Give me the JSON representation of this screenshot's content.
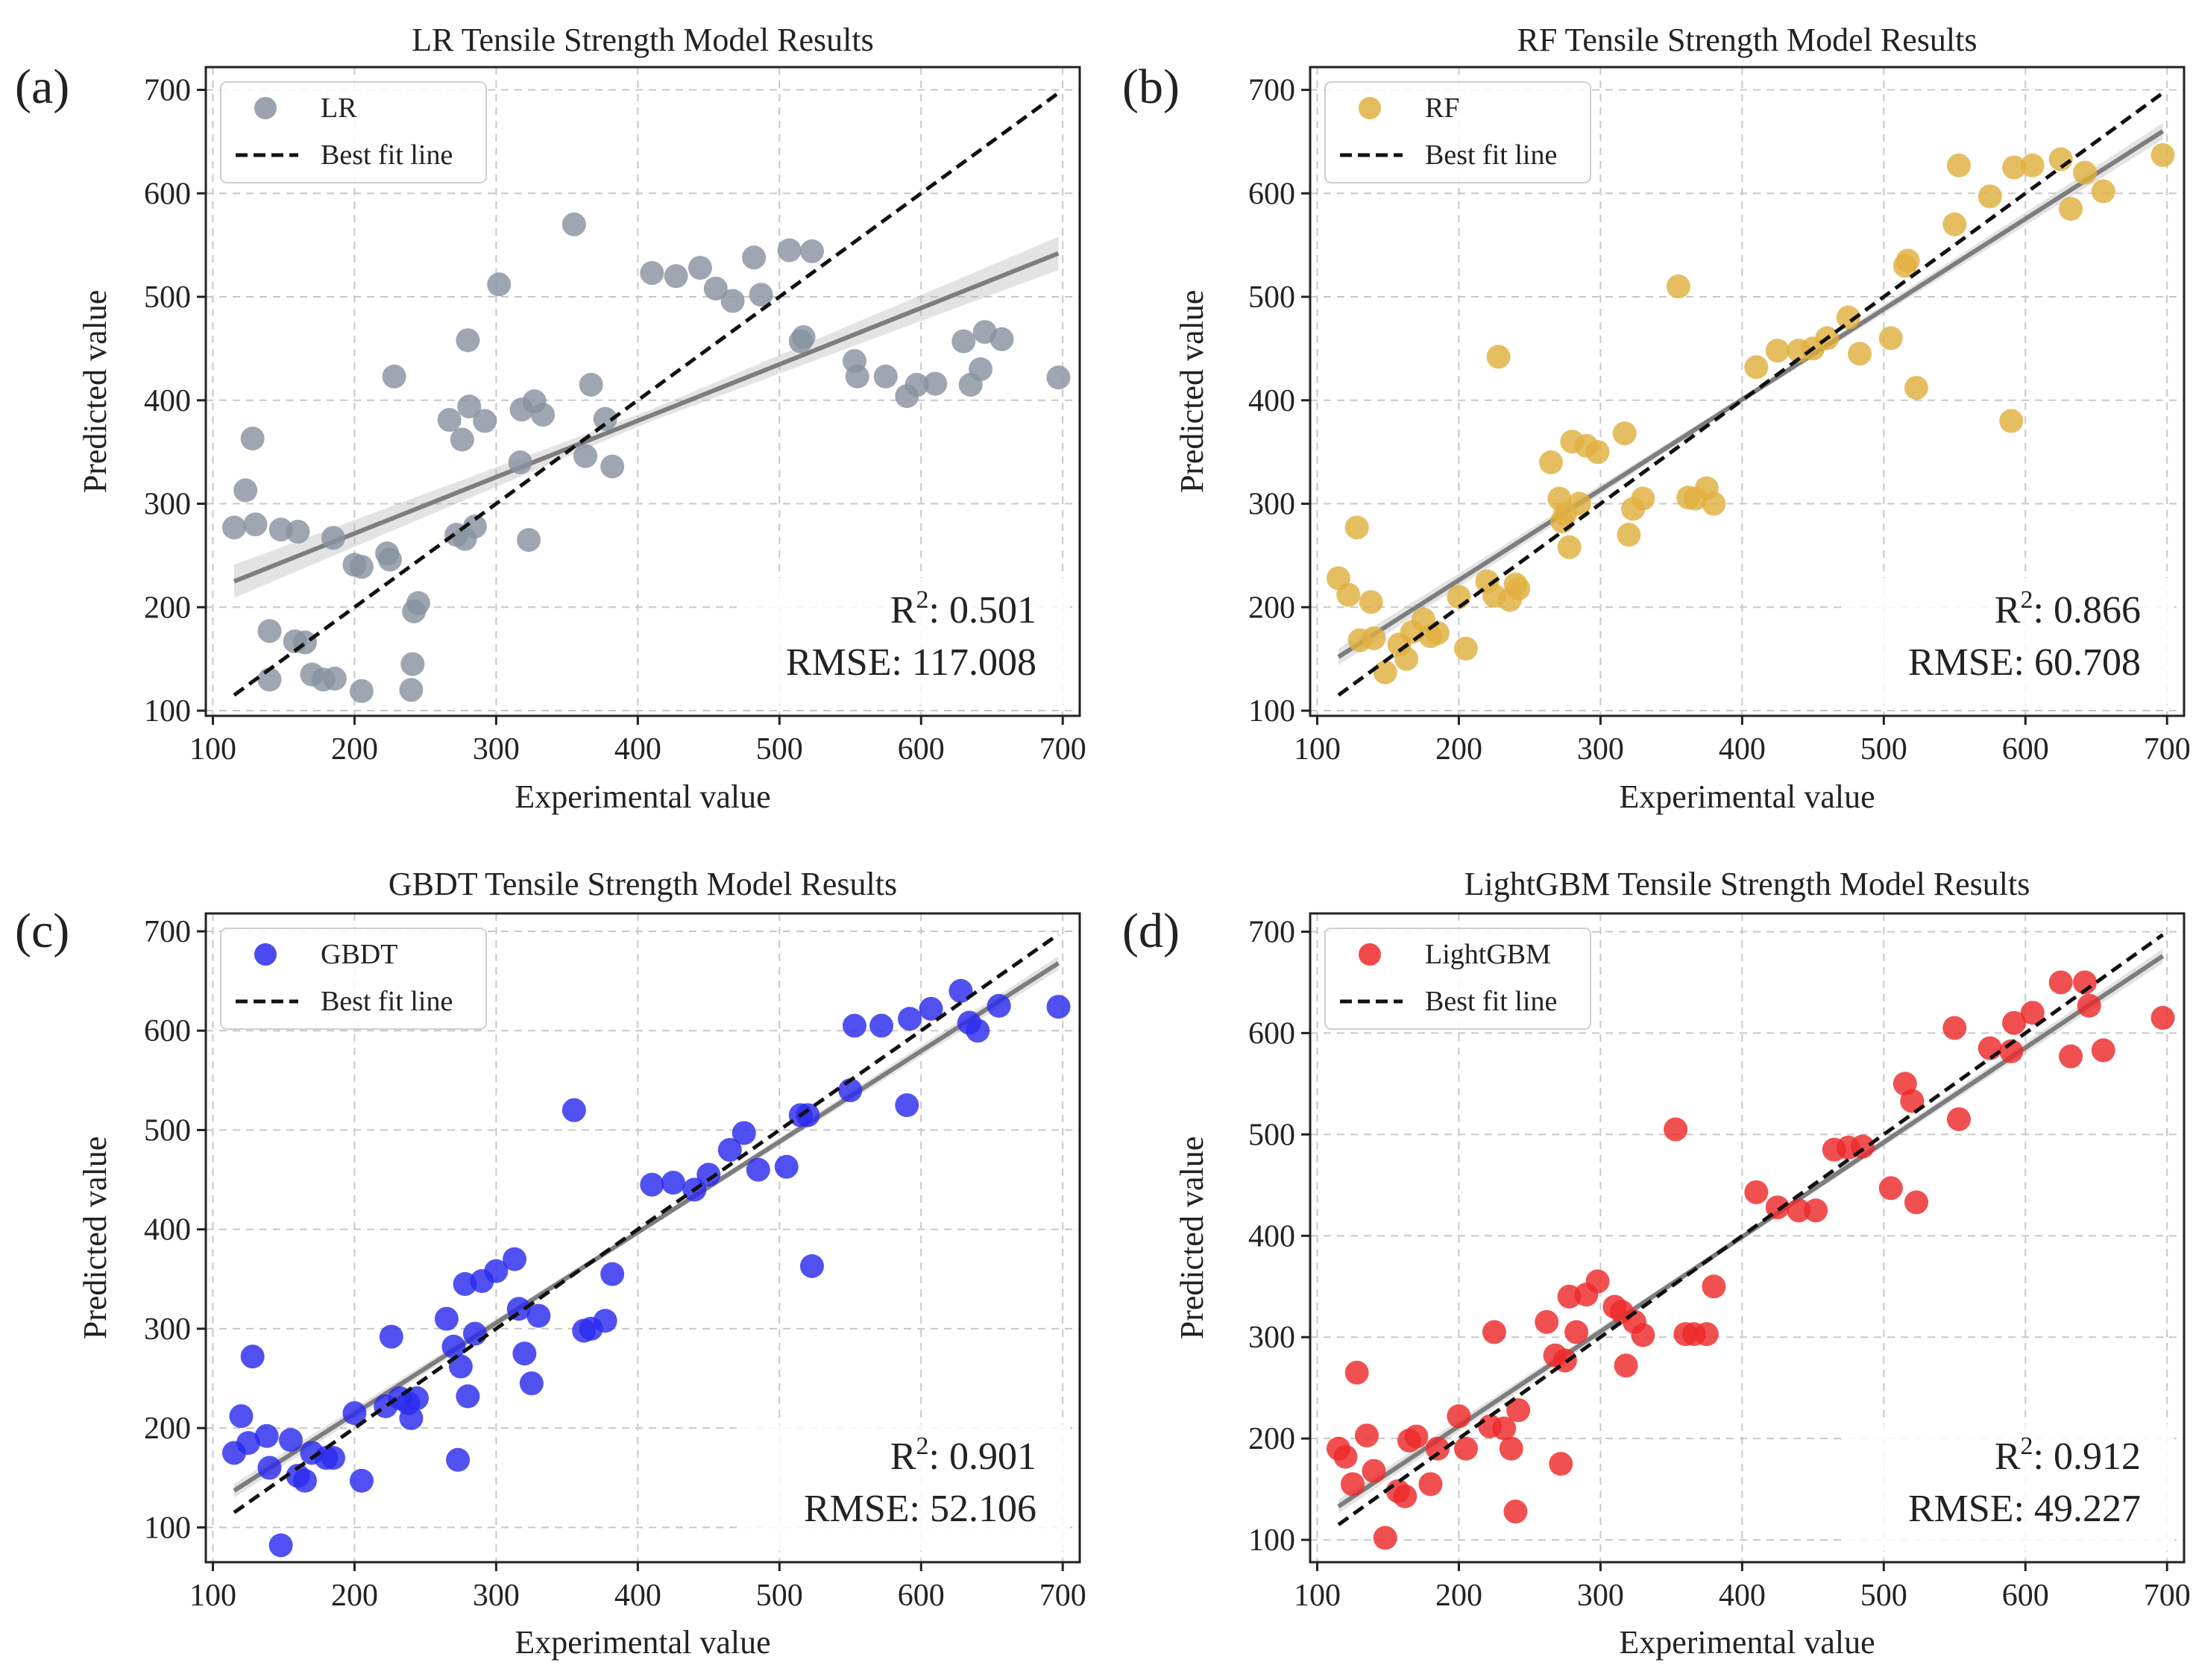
{
  "chart_data": [
    {
      "type": "scatter",
      "panel_label": "(a)",
      "title": "LR Tensile Strength Model Results",
      "xlabel": "Experimental value",
      "ylabel": "Predicted value",
      "xlim": [
        95,
        712
      ],
      "ylim": [
        95,
        722
      ],
      "xticks": [
        "100",
        "200",
        "300",
        "400",
        "500",
        "600",
        "700"
      ],
      "yticks": [
        "100",
        "200",
        "300",
        "400",
        "500",
        "600",
        "700"
      ],
      "legend": {
        "location": "upper-left",
        "series_label": "LR",
        "line_label": "Best fit line"
      },
      "color": "#8892a0",
      "metrics": {
        "r2_label": "R",
        "r2_sup": "2",
        "r2_value": ": 0.501",
        "rmse_text": "RMSE: 117.008"
      },
      "best_fit": {
        "x": [
          115,
          697
        ],
        "y": [
          115,
          697
        ]
      },
      "regression": {
        "x0": 115,
        "y0": 225,
        "x1": 697,
        "y1": 542,
        "band": 16
      },
      "points": [
        [
          115,
          277
        ],
        [
          123,
          313
        ],
        [
          128,
          363
        ],
        [
          130,
          280
        ],
        [
          140,
          130
        ],
        [
          140,
          177
        ],
        [
          148,
          275
        ],
        [
          158,
          167
        ],
        [
          160,
          273
        ],
        [
          165,
          166
        ],
        [
          170,
          135
        ],
        [
          178,
          130
        ],
        [
          186,
          131
        ],
        [
          185,
          267
        ],
        [
          200,
          241
        ],
        [
          205,
          239
        ],
        [
          205,
          119
        ],
        [
          223,
          252
        ],
        [
          225,
          246
        ],
        [
          228,
          423
        ],
        [
          240,
          120
        ],
        [
          241,
          145
        ],
        [
          242,
          196
        ],
        [
          245,
          204
        ],
        [
          267,
          381
        ],
        [
          272,
          270
        ],
        [
          276,
          362
        ],
        [
          278,
          266
        ],
        [
          280,
          458
        ],
        [
          281,
          394
        ],
        [
          285,
          278
        ],
        [
          292,
          380
        ],
        [
          302,
          512
        ],
        [
          317,
          340
        ],
        [
          318,
          391
        ],
        [
          323,
          265
        ],
        [
          327,
          399
        ],
        [
          333,
          386
        ],
        [
          355,
          570
        ],
        [
          363,
          346
        ],
        [
          367,
          415
        ],
        [
          377,
          382
        ],
        [
          382,
          336
        ],
        [
          410,
          523
        ],
        [
          427,
          520
        ],
        [
          444,
          528
        ],
        [
          455,
          508
        ],
        [
          467,
          496
        ],
        [
          482,
          538
        ],
        [
          487,
          502
        ],
        [
          507,
          545
        ],
        [
          515,
          457
        ],
        [
          517,
          461
        ],
        [
          523,
          544
        ],
        [
          553,
          438
        ],
        [
          555,
          423
        ],
        [
          575,
          423
        ],
        [
          590,
          404
        ],
        [
          597,
          415
        ],
        [
          610,
          416
        ],
        [
          630,
          457
        ],
        [
          635,
          415
        ],
        [
          642,
          430
        ],
        [
          645,
          466
        ],
        [
          657,
          459
        ],
        [
          697,
          422
        ]
      ]
    },
    {
      "type": "scatter",
      "panel_label": "(b)",
      "title": "RF Tensile Strength Model Results",
      "xlabel": "Experimental value",
      "ylabel": "Predicted value",
      "xlim": [
        95,
        712
      ],
      "ylim": [
        95,
        722
      ],
      "xticks": [
        "100",
        "200",
        "300",
        "400",
        "500",
        "600",
        "700"
      ],
      "yticks": [
        "100",
        "200",
        "300",
        "400",
        "500",
        "600",
        "700"
      ],
      "legend": {
        "location": "upper-left",
        "series_label": "RF",
        "line_label": "Best fit line"
      },
      "color": "#e0b040",
      "metrics": {
        "r2_label": "R",
        "r2_sup": "2",
        "r2_value": ": 0.866",
        "rmse_text": "RMSE: 60.708"
      },
      "best_fit": {
        "x": [
          115,
          697
        ],
        "y": [
          115,
          697
        ]
      },
      "regression": {
        "x0": 115,
        "y0": 152,
        "x1": 697,
        "y1": 660,
        "band": 8
      },
      "points": [
        [
          115,
          228
        ],
        [
          122,
          212
        ],
        [
          128,
          277
        ],
        [
          130,
          168
        ],
        [
          138,
          205
        ],
        [
          140,
          170
        ],
        [
          148,
          137
        ],
        [
          158,
          164
        ],
        [
          163,
          150
        ],
        [
          167,
          176
        ],
        [
          175,
          188
        ],
        [
          180,
          172
        ],
        [
          185,
          175
        ],
        [
          200,
          210
        ],
        [
          205,
          160
        ],
        [
          220,
          225
        ],
        [
          225,
          211
        ],
        [
          228,
          442
        ],
        [
          236,
          207
        ],
        [
          240,
          222
        ],
        [
          242,
          218
        ],
        [
          265,
          340
        ],
        [
          271,
          305
        ],
        [
          273,
          283
        ],
        [
          275,
          290
        ],
        [
          278,
          258
        ],
        [
          280,
          360
        ],
        [
          285,
          300
        ],
        [
          290,
          356
        ],
        [
          298,
          350
        ],
        [
          317,
          368
        ],
        [
          320,
          270
        ],
        [
          323,
          295
        ],
        [
          330,
          305
        ],
        [
          355,
          510
        ],
        [
          362,
          306
        ],
        [
          367,
          305
        ],
        [
          375,
          315
        ],
        [
          380,
          300
        ],
        [
          410,
          432
        ],
        [
          425,
          448
        ],
        [
          440,
          448
        ],
        [
          450,
          450
        ],
        [
          460,
          460
        ],
        [
          475,
          480
        ],
        [
          483,
          445
        ],
        [
          505,
          460
        ],
        [
          515,
          530
        ],
        [
          517,
          535
        ],
        [
          523,
          412
        ],
        [
          550,
          570
        ],
        [
          553,
          627
        ],
        [
          575,
          597
        ],
        [
          590,
          380
        ],
        [
          592,
          625
        ],
        [
          605,
          627
        ],
        [
          625,
          633
        ],
        [
          632,
          585
        ],
        [
          642,
          620
        ],
        [
          655,
          602
        ],
        [
          697,
          637
        ]
      ]
    },
    {
      "type": "scatter",
      "panel_label": "(c)",
      "title": "GBDT Tensile Strength Model Results",
      "xlabel": "Experimental value",
      "ylabel": "Predicted value",
      "xlim": [
        95,
        712
      ],
      "ylim": [
        65,
        718
      ],
      "xticks": [
        "100",
        "200",
        "300",
        "400",
        "500",
        "600",
        "700"
      ],
      "yticks": [
        "100",
        "200",
        "300",
        "400",
        "500",
        "600",
        "700"
      ],
      "legend": {
        "location": "upper-left",
        "series_label": "GBDT",
        "line_label": "Best fit line"
      },
      "color": "#2b2bef",
      "metrics": {
        "r2_label": "R",
        "r2_sup": "2",
        "r2_value": ": 0.901",
        "rmse_text": "RMSE: 52.106"
      },
      "best_fit": {
        "x": [
          115,
          697
        ],
        "y": [
          115,
          697
        ]
      },
      "regression": {
        "x0": 115,
        "y0": 137,
        "x1": 697,
        "y1": 668,
        "band": 7
      },
      "points": [
        [
          115,
          175
        ],
        [
          120,
          212
        ],
        [
          125,
          185
        ],
        [
          128,
          272
        ],
        [
          138,
          192
        ],
        [
          140,
          160
        ],
        [
          148,
          82
        ],
        [
          155,
          188
        ],
        [
          160,
          152
        ],
        [
          165,
          147
        ],
        [
          170,
          175
        ],
        [
          180,
          170
        ],
        [
          185,
          170
        ],
        [
          200,
          215
        ],
        [
          205,
          147
        ],
        [
          222,
          222
        ],
        [
          226,
          292
        ],
        [
          232,
          230
        ],
        [
          238,
          225
        ],
        [
          240,
          210
        ],
        [
          244,
          230
        ],
        [
          265,
          310
        ],
        [
          270,
          282
        ],
        [
          273,
          168
        ],
        [
          275,
          262
        ],
        [
          278,
          345
        ],
        [
          280,
          232
        ],
        [
          285,
          295
        ],
        [
          290,
          348
        ],
        [
          300,
          358
        ],
        [
          313,
          370
        ],
        [
          316,
          320
        ],
        [
          320,
          275
        ],
        [
          325,
          245
        ],
        [
          330,
          313
        ],
        [
          355,
          520
        ],
        [
          362,
          298
        ],
        [
          367,
          300
        ],
        [
          377,
          308
        ],
        [
          382,
          355
        ],
        [
          410,
          445
        ],
        [
          425,
          447
        ],
        [
          440,
          440
        ],
        [
          450,
          455
        ],
        [
          465,
          480
        ],
        [
          475,
          497
        ],
        [
          485,
          460
        ],
        [
          505,
          463
        ],
        [
          515,
          515
        ],
        [
          520,
          515
        ],
        [
          523,
          363
        ],
        [
          550,
          540
        ],
        [
          553,
          605
        ],
        [
          572,
          605
        ],
        [
          590,
          525
        ],
        [
          592,
          612
        ],
        [
          607,
          622
        ],
        [
          628,
          640
        ],
        [
          634,
          608
        ],
        [
          640,
          600
        ],
        [
          655,
          625
        ],
        [
          697,
          624
        ]
      ]
    },
    {
      "type": "scatter",
      "panel_label": "(d)",
      "title": "LightGBM Tensile Strength Model Results",
      "xlabel": "Experimental value",
      "ylabel": "Predicted value",
      "xlim": [
        95,
        712
      ],
      "ylim": [
        78,
        718
      ],
      "xticks": [
        "100",
        "200",
        "300",
        "400",
        "500",
        "600",
        "700"
      ],
      "yticks": [
        "100",
        "200",
        "300",
        "400",
        "500",
        "600",
        "700"
      ],
      "legend": {
        "location": "upper-left",
        "series_label": "LightGBM",
        "line_label": "Best fit line"
      },
      "color": "#ee2a2a",
      "metrics": {
        "r2_label": "R",
        "r2_sup": "2",
        "r2_value": ": 0.912",
        "rmse_text": "RMSE: 49.227"
      },
      "best_fit": {
        "x": [
          115,
          697
        ],
        "y": [
          115,
          697
        ]
      },
      "regression": {
        "x0": 115,
        "y0": 133,
        "x1": 697,
        "y1": 676,
        "band": 7
      },
      "points": [
        [
          115,
          190
        ],
        [
          120,
          182
        ],
        [
          125,
          155
        ],
        [
          128,
          265
        ],
        [
          135,
          203
        ],
        [
          140,
          168
        ],
        [
          148,
          102
        ],
        [
          157,
          148
        ],
        [
          162,
          143
        ],
        [
          165,
          198
        ],
        [
          170,
          202
        ],
        [
          180,
          155
        ],
        [
          185,
          190
        ],
        [
          200,
          222
        ],
        [
          205,
          190
        ],
        [
          222,
          212
        ],
        [
          225,
          305
        ],
        [
          232,
          210
        ],
        [
          237,
          190
        ],
        [
          240,
          128
        ],
        [
          242,
          228
        ],
        [
          262,
          315
        ],
        [
          268,
          282
        ],
        [
          272,
          175
        ],
        [
          275,
          277
        ],
        [
          278,
          340
        ],
        [
          283,
          305
        ],
        [
          290,
          342
        ],
        [
          298,
          355
        ],
        [
          310,
          330
        ],
        [
          315,
          325
        ],
        [
          318,
          272
        ],
        [
          324,
          315
        ],
        [
          330,
          302
        ],
        [
          353,
          505
        ],
        [
          360,
          303
        ],
        [
          366,
          303
        ],
        [
          375,
          303
        ],
        [
          380,
          350
        ],
        [
          410,
          443
        ],
        [
          425,
          428
        ],
        [
          440,
          425
        ],
        [
          452,
          425
        ],
        [
          465,
          485
        ],
        [
          475,
          487
        ],
        [
          485,
          488
        ],
        [
          505,
          447
        ],
        [
          515,
          550
        ],
        [
          520,
          533
        ],
        [
          523,
          433
        ],
        [
          550,
          605
        ],
        [
          553,
          515
        ],
        [
          575,
          585
        ],
        [
          590,
          582
        ],
        [
          592,
          610
        ],
        [
          605,
          620
        ],
        [
          625,
          650
        ],
        [
          632,
          577
        ],
        [
          642,
          650
        ],
        [
          645,
          627
        ],
        [
          655,
          583
        ],
        [
          697,
          615
        ]
      ]
    }
  ]
}
